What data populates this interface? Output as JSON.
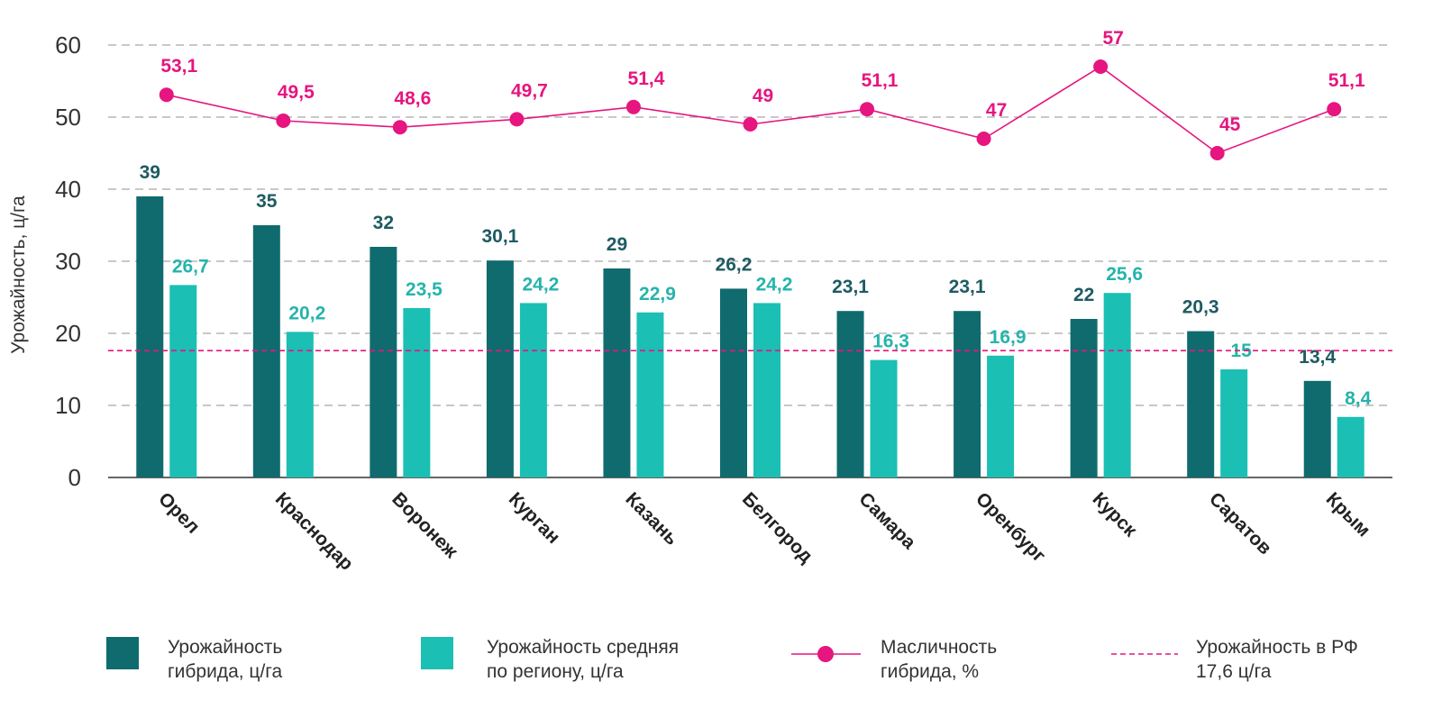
{
  "chart_data": {
    "type": "bar",
    "ylabel": "Урожайность, ц/га",
    "ylim": [
      0,
      60
    ],
    "yticks": [
      0,
      10,
      20,
      30,
      40,
      50,
      60
    ],
    "grid": true,
    "legend_placement": "bottom",
    "categories": [
      "Орел",
      "Краснодар",
      "Воронеж",
      "Курган",
      "Казань",
      "Белгород",
      "Самара",
      "Оренбург",
      "Курск",
      "Саратов",
      "Крым"
    ],
    "series": [
      {
        "name_lines": [
          "Урожайность",
          "гибрида, ц/га"
        ],
        "type": "bar",
        "color": "#0f6b6e",
        "values": [
          39,
          35,
          32,
          30.1,
          29,
          26.2,
          23.1,
          23.1,
          22,
          20.3,
          13.4
        ],
        "labels": [
          "39",
          "35",
          "32",
          "30,1",
          "29",
          "26,2",
          "23,1",
          "23,1",
          "22",
          "20,3",
          "13,4"
        ]
      },
      {
        "name_lines": [
          "Урожайность средняя",
          "по региону, ц/га"
        ],
        "type": "bar",
        "color": "#1bbfb4",
        "values": [
          26.7,
          20.2,
          23.5,
          24.2,
          22.9,
          24.2,
          16.3,
          16.9,
          25.6,
          15,
          8.4
        ],
        "labels": [
          "26,7",
          "20,2",
          "23,5",
          "24,2",
          "22,9",
          "24,2",
          "16,3",
          "16,9",
          "25,6",
          "15",
          "8,4"
        ]
      },
      {
        "name_lines": [
          "Масличность",
          "гибрида, %"
        ],
        "type": "line",
        "color": "#e6157f",
        "values": [
          53.1,
          49.5,
          48.6,
          49.7,
          51.4,
          49,
          51.1,
          47,
          57,
          45,
          51.1
        ],
        "labels": [
          "53,1",
          "49,5",
          "48,6",
          "49,7",
          "51,4",
          "49",
          "51,1",
          "47",
          "57",
          "45",
          "51,1"
        ]
      }
    ],
    "reference_line": {
      "name_lines": [
        "Урожайность в РФ",
        "17,6 ц/га"
      ],
      "value": 17.6,
      "color": "#e6157f",
      "style": "dashed"
    }
  }
}
